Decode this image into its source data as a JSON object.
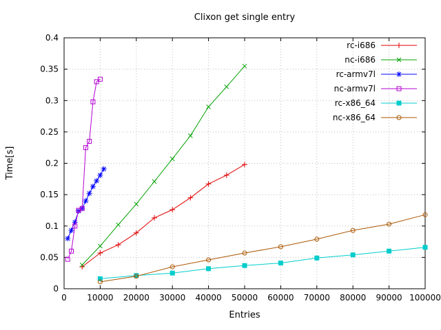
{
  "chart_data": {
    "type": "line",
    "title": "Clixon get single entry",
    "xlabel": "Entries",
    "ylabel": "Time[s]",
    "xlim": [
      0,
      100000
    ],
    "ylim": [
      0,
      0.4
    ],
    "grid": true,
    "legend_position": "top-right-inside",
    "xticks": {
      "values": [
        0,
        10000,
        20000,
        30000,
        40000,
        50000,
        60000,
        70000,
        80000,
        90000,
        100000
      ],
      "labels": [
        "0",
        "10000",
        "20000",
        "30000",
        "40000",
        "50000",
        "60000",
        "70000",
        "80000",
        "90000",
        "100000"
      ]
    },
    "yticks": {
      "values": [
        0,
        0.05,
        0.1,
        0.15,
        0.2,
        0.25,
        0.3,
        0.35,
        0.4
      ],
      "labels": [
        "0",
        "0.05",
        "0.1",
        "0.15",
        "0.2",
        "0.25",
        "0.3",
        "0.35",
        "0.4"
      ]
    },
    "series": [
      {
        "name": "rc-i686",
        "color": "#e00000",
        "marker": "plus",
        "x": [
          5000,
          10000,
          15000,
          20000,
          25000,
          30000,
          35000,
          40000,
          45000,
          50000
        ],
        "y": [
          0.035,
          0.057,
          0.07,
          0.089,
          0.113,
          0.126,
          0.145,
          0.167,
          0.181,
          0.198
        ]
      },
      {
        "name": "nc-i686",
        "color": "#00a000",
        "marker": "cross",
        "x": [
          5000,
          10000,
          15000,
          20000,
          25000,
          30000,
          35000,
          40000,
          45000,
          50000
        ],
        "y": [
          0.038,
          0.068,
          0.102,
          0.135,
          0.171,
          0.207,
          0.244,
          0.29,
          0.322,
          0.355
        ]
      },
      {
        "name": "rc-armv7l",
        "color": "#0000ff",
        "marker": "asterisk",
        "x": [
          1000,
          2000,
          3000,
          4000,
          5000,
          6000,
          7000,
          8000,
          9000,
          10000,
          11000
        ],
        "y": [
          0.08,
          0.093,
          0.106,
          0.124,
          0.128,
          0.14,
          0.152,
          0.163,
          0.172,
          0.181,
          0.191
        ]
      },
      {
        "name": "nc-armv7l",
        "color": "#b400d3",
        "marker": "square-open",
        "x": [
          1000,
          2000,
          3000,
          4000,
          5000,
          6000,
          7000,
          8000,
          9000,
          10000
        ],
        "y": [
          0.047,
          0.06,
          0.1,
          0.125,
          0.128,
          0.225,
          0.235,
          0.298,
          0.33,
          0.334
        ]
      },
      {
        "name": "rc-x86_64",
        "color": "#00cccc",
        "marker": "square-filled",
        "x": [
          10000,
          20000,
          30000,
          40000,
          50000,
          60000,
          70000,
          80000,
          90000,
          100000
        ],
        "y": [
          0.016,
          0.021,
          0.025,
          0.032,
          0.037,
          0.041,
          0.049,
          0.054,
          0.06,
          0.066
        ]
      },
      {
        "name": "nc-x86_64",
        "color": "#aa5500",
        "marker": "circle-open",
        "x": [
          10000,
          20000,
          30000,
          40000,
          50000,
          60000,
          70000,
          80000,
          90000,
          100000
        ],
        "y": [
          0.011,
          0.02,
          0.035,
          0.046,
          0.057,
          0.067,
          0.079,
          0.093,
          0.103,
          0.118
        ]
      }
    ]
  }
}
